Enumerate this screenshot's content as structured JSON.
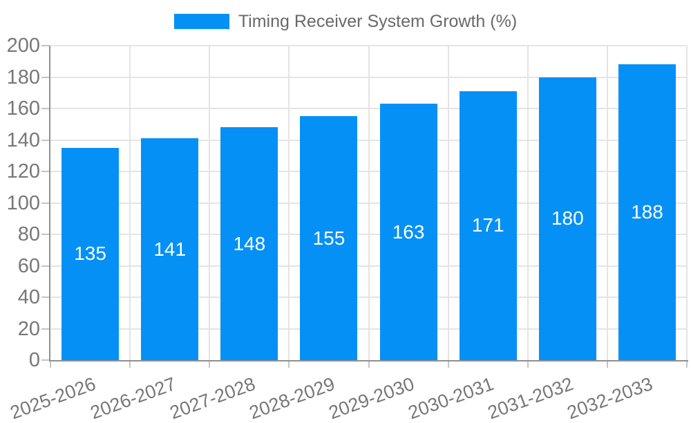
{
  "chart_data": {
    "type": "bar",
    "title": "Timing Receiver System Growth (%)",
    "categories": [
      "2025-2026",
      "2026-2027",
      "2027-2028",
      "2028-2029",
      "2029-2030",
      "2030-2031",
      "2031-2032",
      "2032-2033"
    ],
    "values": [
      135,
      141,
      148,
      155,
      163,
      171,
      180,
      188
    ],
    "value_labels": [
      "135",
      "141",
      "148",
      "155",
      "163",
      "171",
      "180",
      "188"
    ],
    "xlabel": "",
    "ylabel": "",
    "ylim": [
      0,
      200
    ],
    "ytick_step": 20,
    "ytick_labels": [
      "0",
      "20",
      "40",
      "60",
      "80",
      "100",
      "120",
      "140",
      "160",
      "180",
      "200"
    ],
    "grid": true,
    "legend_position": "top",
    "bar_labels_inside": true,
    "colors": {
      "bar": "#0590f5",
      "grid": "#e4e4e4",
      "axis": "#8f8f8f",
      "tick": "#c4c4c4",
      "tick_label": "#777777",
      "legend_label": "#696969",
      "value_label": "#ffffff",
      "background": "#ffffff"
    }
  }
}
